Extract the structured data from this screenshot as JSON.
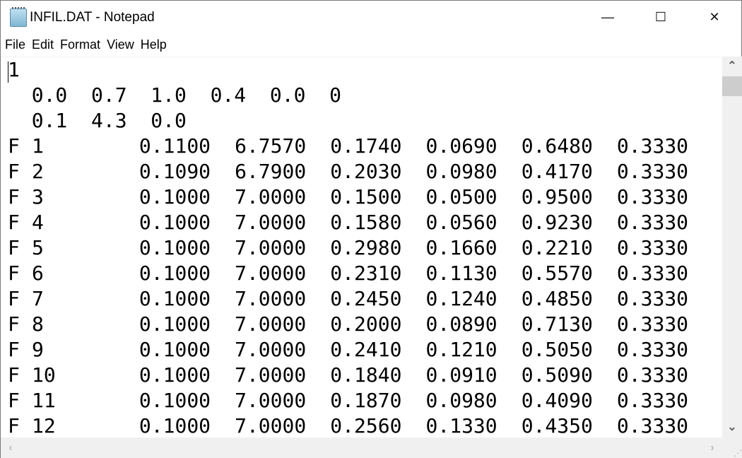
{
  "window": {
    "title": "INFIL.DAT - Notepad",
    "icon": "notepad-icon",
    "controls": {
      "minimize": "—",
      "maximize": "☐",
      "close": "✕"
    }
  },
  "menu": [
    "File",
    "Edit",
    "Format",
    "View",
    "Help"
  ],
  "document": {
    "header_lines": [
      "1",
      "  0.0  0.7  1.0  0.4  0.0  0",
      "  0.1  4.3  0.0"
    ],
    "rows": [
      [
        "F",
        "1",
        "0.1100",
        "6.7570",
        "0.1740",
        "0.0690",
        "0.6480",
        "0.3330"
      ],
      [
        "F",
        "2",
        "0.1090",
        "6.7900",
        "0.2030",
        "0.0980",
        "0.4170",
        "0.3330"
      ],
      [
        "F",
        "3",
        "0.1000",
        "7.0000",
        "0.1500",
        "0.0500",
        "0.9500",
        "0.3330"
      ],
      [
        "F",
        "4",
        "0.1000",
        "7.0000",
        "0.1580",
        "0.0560",
        "0.9230",
        "0.3330"
      ],
      [
        "F",
        "5",
        "0.1000",
        "7.0000",
        "0.2980",
        "0.1660",
        "0.2210",
        "0.3330"
      ],
      [
        "F",
        "6",
        "0.1000",
        "7.0000",
        "0.2310",
        "0.1130",
        "0.5570",
        "0.3330"
      ],
      [
        "F",
        "7",
        "0.1000",
        "7.0000",
        "0.2450",
        "0.1240",
        "0.4850",
        "0.3330"
      ],
      [
        "F",
        "8",
        "0.1000",
        "7.0000",
        "0.2000",
        "0.0890",
        "0.7130",
        "0.3330"
      ],
      [
        "F",
        "9",
        "0.1000",
        "7.0000",
        "0.2410",
        "0.1210",
        "0.5050",
        "0.3330"
      ],
      [
        "F",
        "10",
        "0.1000",
        "7.0000",
        "0.1840",
        "0.0910",
        "0.5090",
        "0.3330"
      ],
      [
        "F",
        "11",
        "0.1000",
        "7.0000",
        "0.1870",
        "0.0980",
        "0.4090",
        "0.3330"
      ],
      [
        "F",
        "12",
        "0.1000",
        "7.0000",
        "0.2560",
        "0.1330",
        "0.4350",
        "0.3330"
      ]
    ]
  },
  "scrollbars": {
    "up": "⌃",
    "down": "⌄",
    "left": "‹",
    "right": "›"
  }
}
